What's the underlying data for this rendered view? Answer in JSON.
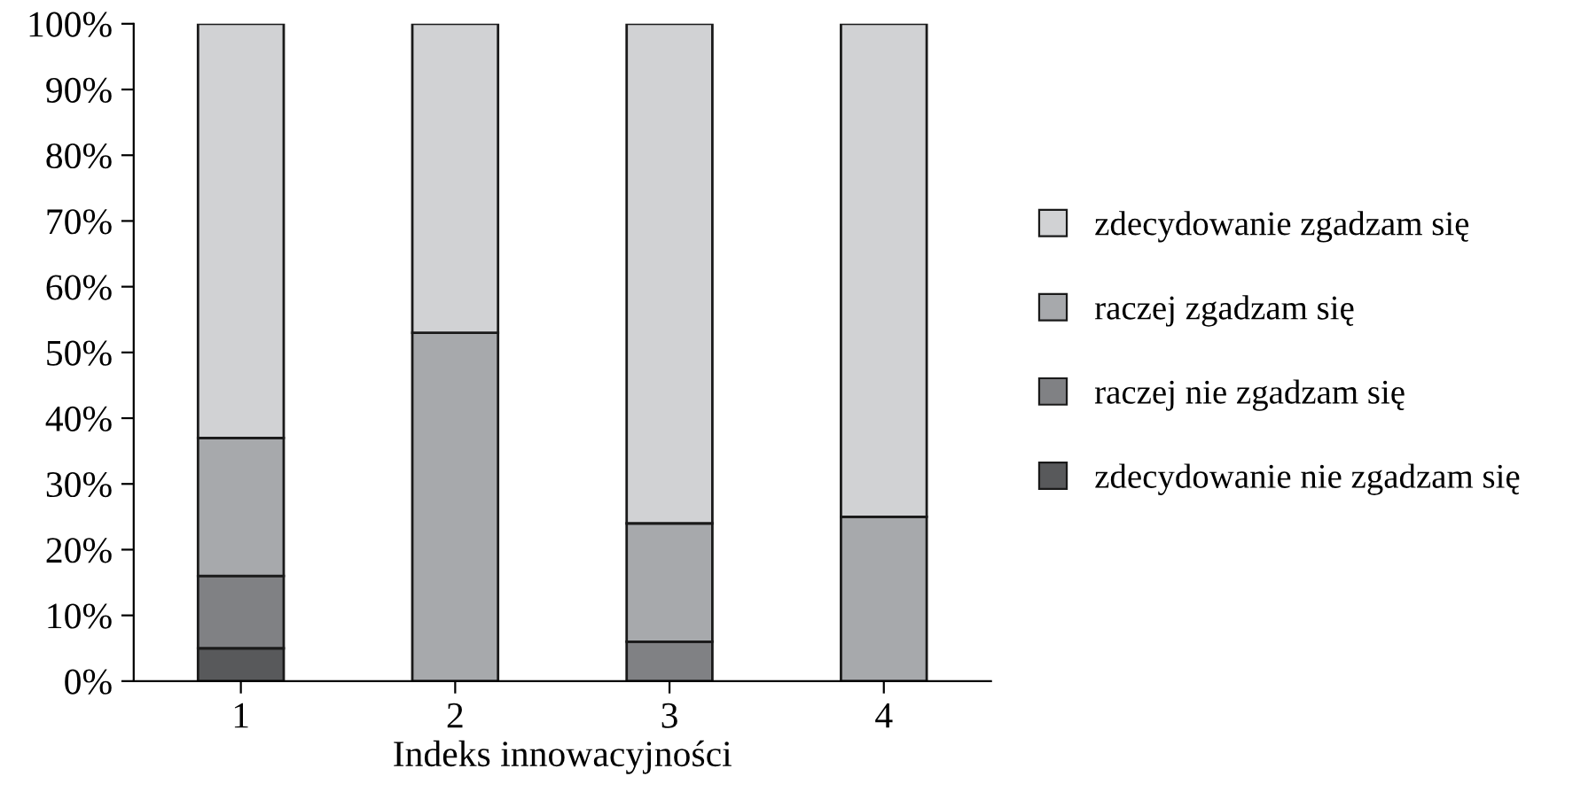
{
  "chart_data": {
    "type": "bar",
    "stacked": true,
    "xlabel": "Indeks innowacyjności",
    "categories": [
      "1",
      "2",
      "3",
      "4"
    ],
    "series": [
      {
        "name": "zdecydowanie nie zgadzam się",
        "color": "#58595b",
        "values": [
          5,
          0,
          0,
          0
        ]
      },
      {
        "name": "raczej nie zgadzam się",
        "color": "#808184",
        "values": [
          11,
          0,
          6,
          0
        ]
      },
      {
        "name": "raczej zgadzam się",
        "color": "#a7a9ac",
        "values": [
          21,
          53,
          18,
          25
        ]
      },
      {
        "name": "zdecydowanie zgadzam się",
        "color": "#d1d2d4",
        "values": [
          63,
          47,
          76,
          75
        ]
      }
    ],
    "ylim": [
      0,
      100
    ],
    "yticks": [
      {
        "value": 0,
        "label": "0%"
      },
      {
        "value": 10,
        "label": "10%"
      },
      {
        "value": 20,
        "label": "20%"
      },
      {
        "value": 30,
        "label": "30%"
      },
      {
        "value": 40,
        "label": "40%"
      },
      {
        "value": 50,
        "label": "50%"
      },
      {
        "value": 60,
        "label": "60%"
      },
      {
        "value": 70,
        "label": "70%"
      },
      {
        "value": 80,
        "label": "80%"
      },
      {
        "value": 90,
        "label": "90%"
      },
      {
        "value": 100,
        "label": "100%"
      }
    ],
    "grid": false,
    "legend": "right"
  }
}
